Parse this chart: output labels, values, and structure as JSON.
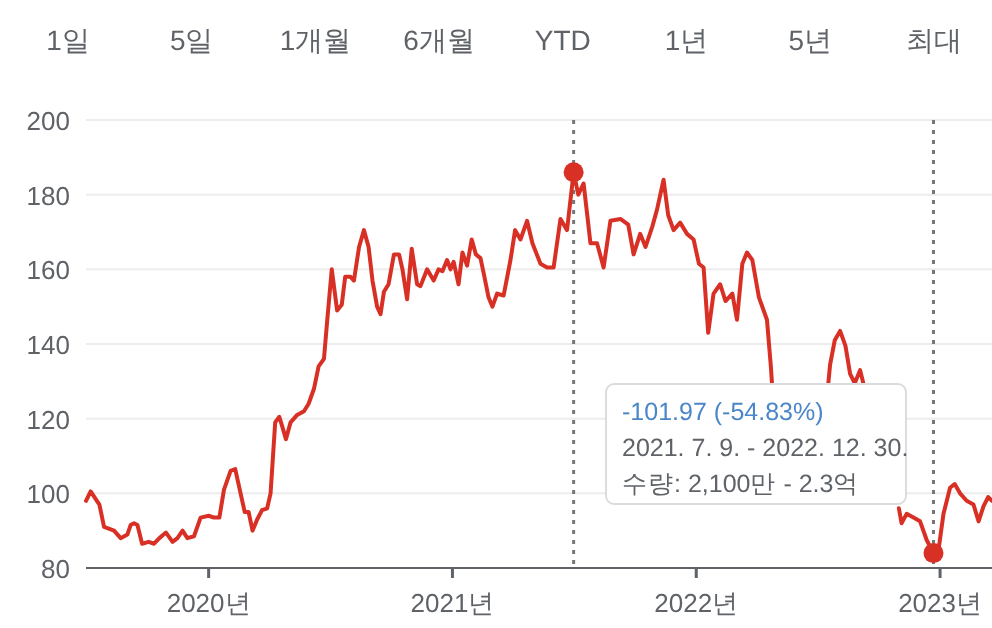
{
  "chart_data": [
    {
      "type": "other",
      "annotations": [
        "1일",
        "5일",
        "1개월",
        "6개월",
        "YTD",
        "1년",
        "5년",
        "최대"
      ]
    },
    {
      "type": "line",
      "xlim": [
        2019.497,
        2023.213
      ],
      "ylim": [
        80,
        200
      ],
      "yticks": [
        80,
        100,
        120,
        140,
        160,
        180,
        200
      ],
      "xticks": [
        {
          "value": 2020,
          "label": "2020년"
        },
        {
          "value": 2021,
          "label": "2021년"
        },
        {
          "value": 2022,
          "label": "2022년"
        },
        {
          "value": 2023,
          "label": "2023년"
        }
      ],
      "grid": "y",
      "line_style": "solid",
      "marker": "none",
      "series": [
        {
          "color": "#d93025",
          "x": [
            2019.497,
            2019.516,
            2019.552,
            2019.571,
            2019.612,
            2019.639,
            2019.667,
            2019.68,
            2019.694,
            2019.708,
            2019.727,
            2019.754,
            2019.776,
            2019.798,
            2019.825,
            2019.852,
            2019.872,
            2019.893,
            2019.913,
            2019.94,
            2019.967,
            2020.0,
            2020.022,
            2020.044,
            2020.063,
            2020.09,
            2020.109,
            2020.131,
            2020.148,
            2020.164,
            2020.18,
            2020.199,
            2020.219,
            2020.24,
            2020.254,
            2020.273,
            2020.29,
            2020.306,
            2020.317,
            2020.336,
            2020.363,
            2020.391,
            2020.41,
            2020.432,
            2020.451,
            2020.473,
            2020.486,
            2020.505,
            2020.527,
            2020.546,
            2020.56,
            2020.582,
            2020.596,
            2020.617,
            2020.637,
            2020.656,
            2020.672,
            2020.691,
            2020.705,
            2020.719,
            2020.738,
            2020.76,
            2020.781,
            2020.795,
            2020.814,
            2020.833,
            2020.855,
            2020.869,
            2020.896,
            2020.923,
            2020.943,
            2020.959,
            2020.978,
            2020.992,
            2021.005,
            2021.025,
            2021.041,
            2021.06,
            2021.079,
            2021.096,
            2021.115,
            2021.128,
            2021.148,
            2021.164,
            2021.183,
            2021.21,
            2021.238,
            2021.257,
            2021.279,
            2021.306,
            2021.328,
            2021.361,
            2021.388,
            2021.415,
            2021.443,
            2021.47,
            2021.497,
            2021.516,
            2021.538,
            2021.552,
            2021.566,
            2021.593,
            2021.62,
            2021.648,
            2021.689,
            2021.721,
            2021.743,
            2021.77,
            2021.792,
            2021.82,
            2021.839,
            2021.866,
            2021.885,
            2021.907,
            2021.934,
            2021.962,
            2021.989,
            2022.011,
            2022.03,
            2022.049,
            2022.071,
            2022.098,
            2022.12,
            2022.148,
            2022.167,
            2022.189,
            2022.208,
            2022.23,
            2022.257,
            2022.29,
            2022.306,
            2022.311,
            2022.4,
            2022.541,
            2022.549,
            2022.568,
            2022.59,
            2022.612,
            2022.631,
            2022.65,
            2022.672,
            2022.689,
            2022.75,
            2022.831,
            2022.842,
            2022.863,
            2022.891,
            2022.918,
            2022.945,
            2022.973,
            2022.995,
            2023.014,
            2023.041,
            2023.06,
            2023.082,
            2023.109,
            2023.137,
            2023.158,
            2023.178,
            2023.197,
            2023.213
          ],
          "values": [
            98,
            100.5,
            97,
            91,
            90,
            88,
            89,
            91.5,
            92,
            91.5,
            86.5,
            87,
            86.5,
            88,
            89.5,
            87,
            88,
            90,
            88,
            88.5,
            93.5,
            94,
            93.5,
            93.5,
            101,
            106,
            106.5,
            100,
            95,
            95,
            90,
            93,
            95.5,
            96,
            100,
            119,
            120.5,
            117,
            114.5,
            119,
            121,
            122,
            124,
            128,
            134,
            136,
            146,
            160,
            149,
            150.5,
            158,
            158,
            157,
            166,
            170.5,
            166,
            157,
            150,
            148,
            154,
            156,
            164,
            164,
            160,
            152,
            165.5,
            156,
            155.5,
            160,
            157,
            160,
            159.5,
            162.5,
            160,
            162,
            156,
            164.5,
            161,
            168,
            164,
            163,
            159,
            152.5,
            150,
            153.5,
            153,
            162.5,
            170.5,
            168,
            173,
            167,
            161.5,
            160.5,
            160.5,
            173.5,
            170.5,
            186,
            180,
            183,
            175,
            167,
            167,
            160.5,
            173,
            173.5,
            172,
            164,
            169.5,
            166,
            171.5,
            176,
            184,
            174.5,
            170.5,
            172.5,
            169.5,
            168,
            161.5,
            160.5,
            143,
            153.5,
            156,
            151.5,
            153.5,
            146.5,
            161.5,
            164.5,
            162.5,
            152.5,
            146.5,
            134,
            129,
            null,
            129,
            134.5,
            141,
            143.5,
            139.5,
            132,
            129.5,
            133,
            128.5,
            null,
            96,
            92,
            94.5,
            93.5,
            92.5,
            87.5,
            84,
            85.5,
            94.5,
            101.5,
            102.5,
            100,
            98,
            97,
            92.5,
            96.5,
            99,
            98
          ]
        },
        {
          "type": "scatter",
          "color": "#d93025",
          "marker": "circle",
          "x": [
            2021.497,
            2022.973
          ],
          "values": [
            186,
            84
          ]
        }
      ],
      "ref_lines": [
        {
          "axis": "x",
          "value": 2021.497,
          "color": "#777777",
          "line_style": "dotted"
        },
        {
          "axis": "x",
          "value": 2022.973,
          "color": "#777777",
          "line_style": "dotted"
        }
      ],
      "annotations": [
        "-101.97 (-54.83%)",
        "2021. 7. 9. - 2022. 12. 30.",
        "수량: 2,100만 - 2.3억"
      ]
    }
  ]
}
